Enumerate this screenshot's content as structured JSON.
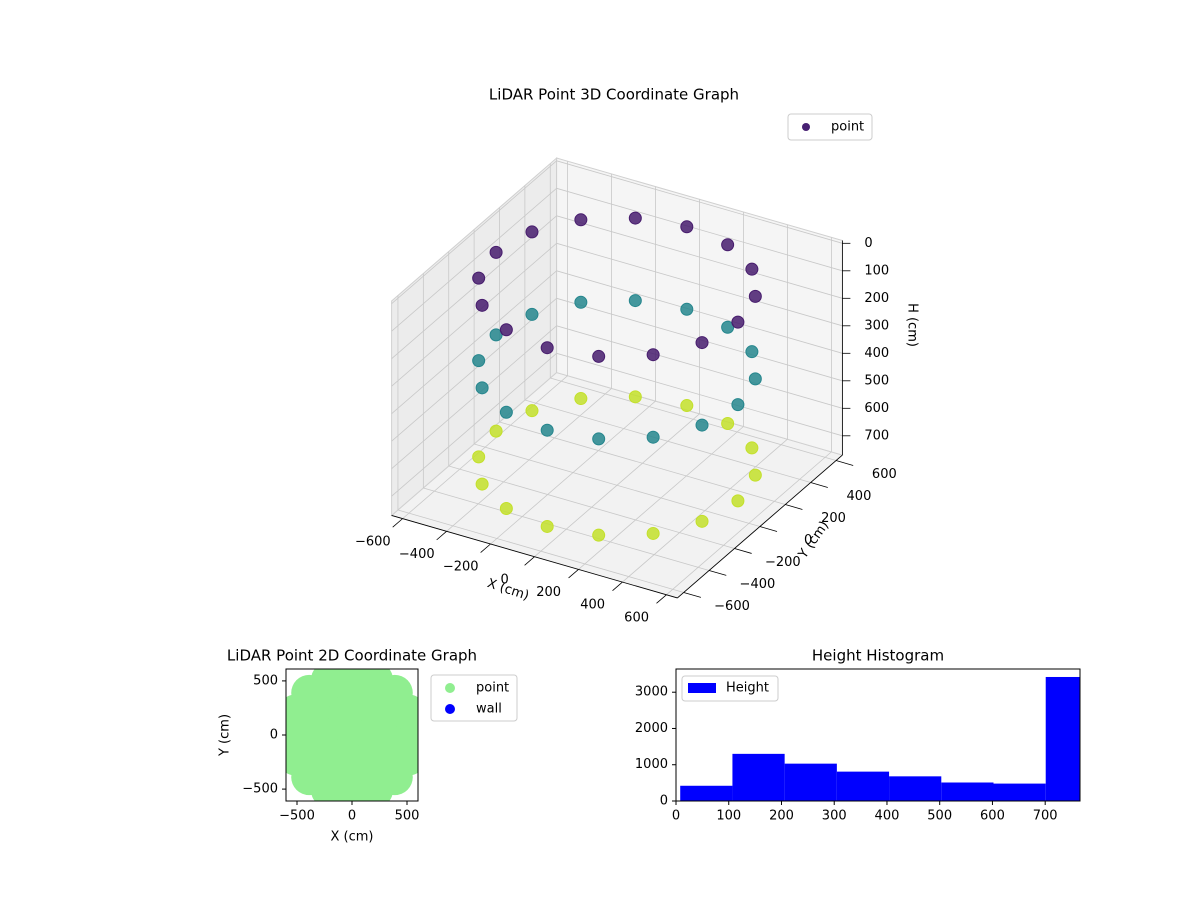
{
  "chart_data": [
    {
      "type": "scatter3d",
      "title": "LiDAR Point 3D Coordinate Graph",
      "xlabel": "X (cm)",
      "ylabel": "Y (cm)",
      "zlabel": "H (cm)",
      "xlim": [
        -650,
        650
      ],
      "ylim": [
        -650,
        650
      ],
      "zlim": [
        -10,
        770
      ],
      "zinverted": true,
      "xticks": [
        {
          "value": -600,
          "label": "−600"
        },
        {
          "value": -400,
          "label": "−400"
        },
        {
          "value": -200,
          "label": "−200"
        },
        0,
        200,
        400,
        600
      ],
      "yticks": [
        {
          "value": -600,
          "label": "−600"
        },
        {
          "value": -400,
          "label": "−400"
        },
        {
          "value": -200,
          "label": "−200"
        },
        0,
        200,
        400,
        600
      ],
      "zticks": [
        0,
        100,
        200,
        300,
        400,
        500,
        600,
        700
      ],
      "colormap": "viridis",
      "legend": "upper right",
      "series": [
        {
          "name": "point",
          "color": "#482173",
          "x": [
            550,
            508,
            389,
            210,
            0,
            -210,
            -389,
            -508,
            -550,
            -508,
            -389,
            -210,
            0,
            210,
            389,
            508,
            550,
            508,
            389,
            210,
            0,
            -210,
            -389,
            -508,
            -550,
            -508,
            -389,
            -210,
            0,
            210,
            389,
            508,
            550,
            508,
            389,
            210,
            0,
            -210,
            -389,
            -508,
            -550,
            -508,
            -389,
            -210,
            0,
            210,
            389,
            508
          ],
          "y": [
            0,
            210,
            389,
            508,
            550,
            508,
            389,
            210,
            0,
            -210,
            -389,
            -508,
            -550,
            -508,
            -389,
            -210,
            0,
            210,
            389,
            508,
            550,
            508,
            389,
            210,
            0,
            -210,
            -389,
            -508,
            -550,
            -508,
            -389,
            -210,
            0,
            210,
            389,
            508,
            550,
            508,
            389,
            210,
            0,
            -210,
            -389,
            -508,
            -550,
            -508,
            -389,
            -210
          ],
          "z": [
            700,
            700,
            700,
            700,
            700,
            700,
            700,
            700,
            700,
            700,
            700,
            700,
            700,
            700,
            700,
            700,
            350,
            350,
            350,
            350,
            350,
            350,
            350,
            350,
            350,
            350,
            350,
            350,
            350,
            350,
            350,
            350,
            50,
            50,
            50,
            50,
            50,
            50,
            50,
            50,
            50,
            50,
            50,
            50,
            50,
            50,
            50,
            50
          ]
        }
      ]
    },
    {
      "type": "scatter",
      "title": "LiDAR Point 2D Coordinate Graph",
      "xlabel": "X (cm)",
      "ylabel": "Y (cm)",
      "xlim": [
        -600,
        600
      ],
      "ylim": [
        -610,
        610
      ],
      "xticks": [
        {
          "value": -500,
          "label": "−500"
        },
        0,
        500
      ],
      "yticks": [
        {
          "value": -500,
          "label": "−500"
        },
        0,
        500
      ],
      "legend": "outside right",
      "series": [
        {
          "name": "point",
          "color": "#90ee90",
          "x": [
            0,
            275,
            254,
            194,
            105,
            0,
            -105,
            -194,
            -254,
            -275,
            -254,
            -194,
            -105,
            0,
            105,
            194,
            254,
            550,
            508,
            389,
            210,
            0,
            -210,
            -389,
            -508,
            -550,
            -508,
            -389,
            -210,
            0,
            210,
            389,
            508
          ],
          "y": [
            0,
            0,
            105,
            194,
            254,
            275,
            254,
            194,
            105,
            0,
            -105,
            -194,
            -254,
            -275,
            -254,
            -194,
            -105,
            0,
            210,
            389,
            508,
            550,
            508,
            389,
            210,
            0,
            -210,
            -389,
            -508,
            -550,
            -508,
            -389,
            -210
          ]
        },
        {
          "name": "wall",
          "color": "#0000ff",
          "x": [],
          "y": []
        }
      ]
    },
    {
      "type": "histogram",
      "title": "Height Histogram",
      "series_name": "Height",
      "color": "#0000ff",
      "bins": [
        8,
        107,
        206,
        305,
        404,
        503,
        602,
        701,
        766
      ],
      "values": [
        420,
        1300,
        1030,
        810,
        680,
        510,
        480,
        3420
      ],
      "xlim": [
        0,
        766
      ],
      "ylim": [
        0,
        3640
      ],
      "xticks": [
        0,
        100,
        200,
        300,
        400,
        500,
        600,
        700
      ],
      "yticks": [
        0,
        1000,
        2000,
        3000
      ],
      "legend": "upper left"
    }
  ]
}
